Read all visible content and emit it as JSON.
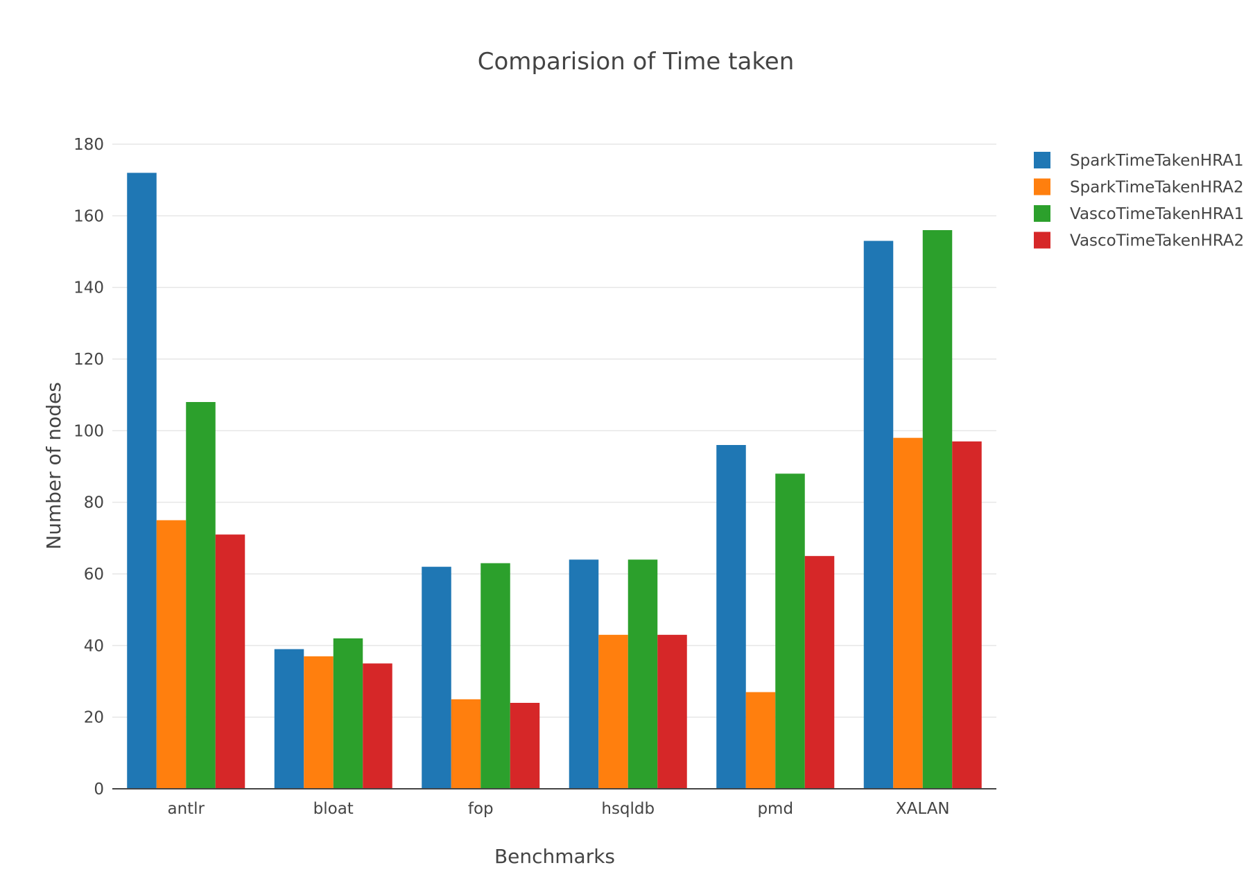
{
  "chart_data": {
    "type": "bar",
    "title": "Comparision of Time taken",
    "xlabel": "Benchmarks",
    "ylabel": "Number of nodes",
    "categories": [
      "antlr",
      "bloat",
      "fop",
      "hsqldb",
      "pmd",
      "XALAN"
    ],
    "ylim": [
      0,
      180
    ],
    "yticks": [
      0,
      20,
      40,
      60,
      80,
      100,
      120,
      140,
      160,
      180
    ],
    "grid": true,
    "legend_position": "right",
    "series": [
      {
        "name": "SparkTimeTakenHRA1",
        "color": "#1f77b4",
        "values": [
          172,
          39,
          62,
          64,
          96,
          153
        ]
      },
      {
        "name": "SparkTimeTakenHRA2",
        "color": "#ff7f0e",
        "values": [
          75,
          37,
          25,
          43,
          27,
          98
        ]
      },
      {
        "name": "VascoTimeTakenHRA1",
        "color": "#2ca02c",
        "values": [
          108,
          42,
          63,
          64,
          88,
          156
        ]
      },
      {
        "name": "VascoTimeTakenHRA2",
        "color": "#d62728",
        "values": [
          71,
          35,
          24,
          43,
          65,
          97
        ]
      }
    ]
  }
}
